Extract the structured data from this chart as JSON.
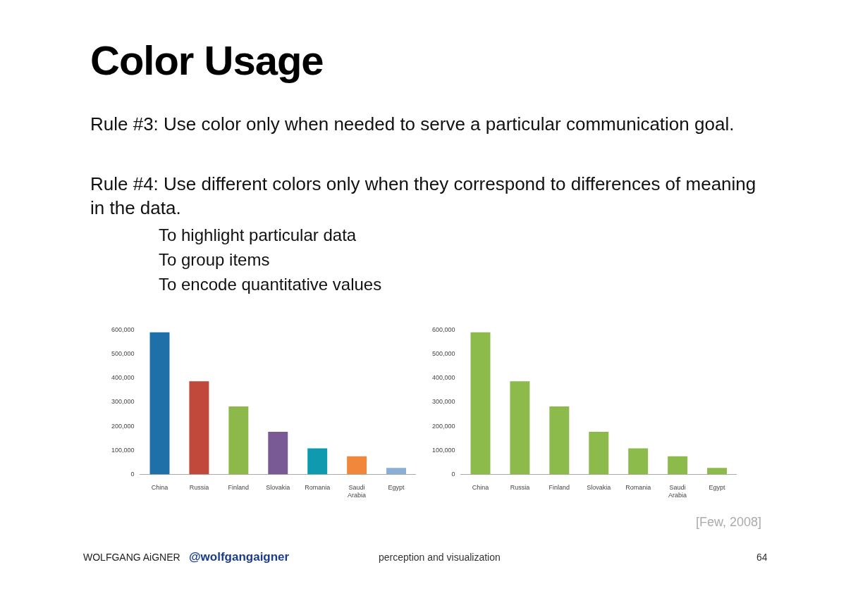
{
  "chart_data": [
    {
      "type": "other",
      "title": "Color Usage",
      "annotations": [
        "Rule #3: Use color only when needed to serve a particular communication goal.",
        "Rule #4: Use different colors only when they correspond to differences of meaning in the data.",
        "To highlight particular data",
        "To group items",
        "To encode quantitative values",
        "[Few, 2008]",
        "WOLFGANG AiGNER",
        "@wolfgangaigner",
        "perception and visualization",
        "64"
      ]
    },
    {
      "type": "bar",
      "categories": [
        "China",
        "Russia",
        "Finland",
        "Slovakia",
        "Romania",
        "Saudi Arabia",
        "Egypt"
      ],
      "values": [
        590000,
        387000,
        282000,
        177000,
        108000,
        75000,
        27000
      ],
      "colors": [
        "#1f70a9",
        "#c1493c",
        "#8db84a",
        "#7a5a94",
        "#0f9ab0",
        "#f0873a",
        "#8aaed6"
      ],
      "ylim": [
        0,
        600000
      ],
      "yticks": [
        {
          "value": 0,
          "label": "0"
        },
        {
          "value": 100000,
          "label": "100,000"
        },
        {
          "value": 200000,
          "label": "200,000"
        },
        {
          "value": 300000,
          "label": "300,000"
        },
        {
          "value": 400000,
          "label": "400,000"
        },
        {
          "value": 500000,
          "label": "500,000"
        },
        {
          "value": 600000,
          "label": "600,000"
        }
      ]
    },
    {
      "type": "bar",
      "categories": [
        "China",
        "Russia",
        "Finland",
        "Slovakia",
        "Romania",
        "Saudi Arabia",
        "Egypt"
      ],
      "values": [
        590000,
        387000,
        282000,
        177000,
        108000,
        75000,
        27000
      ],
      "color": "#8cbb4c",
      "ylim": [
        0,
        600000
      ],
      "yticks": [
        {
          "value": 0,
          "label": "0"
        },
        {
          "value": 100000,
          "label": "100,000"
        },
        {
          "value": 200000,
          "label": "200,000"
        },
        {
          "value": 300000,
          "label": "300,000"
        },
        {
          "value": 400000,
          "label": "400,000"
        },
        {
          "value": 500000,
          "label": "500,000"
        },
        {
          "value": 600000,
          "label": "600,000"
        }
      ]
    }
  ]
}
